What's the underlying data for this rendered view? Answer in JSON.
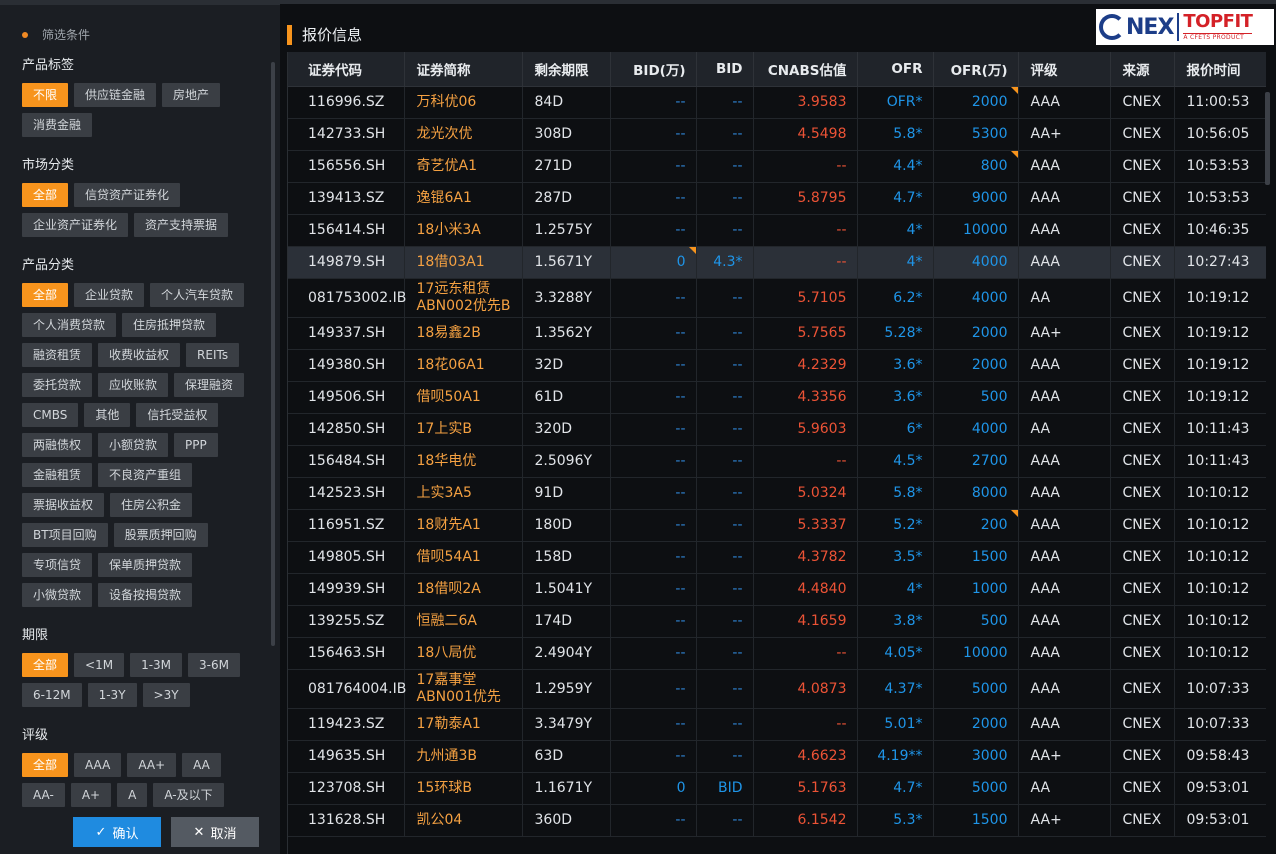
{
  "filters": {
    "header": "筛选条件",
    "sections": [
      {
        "title": "产品标签",
        "tags": [
          "不限",
          "供应链金融",
          "房地产",
          "消费金融"
        ],
        "active": 0
      },
      {
        "title": "市场分类",
        "tags": [
          "全部",
          "信贷资产证券化",
          "企业资产证券化",
          "资产支持票据"
        ],
        "active": 0
      },
      {
        "title": "产品分类",
        "tags": [
          "全部",
          "企业贷款",
          "个人汽车贷款",
          "个人消费贷款",
          "住房抵押贷款",
          "融资租赁",
          "收费收益权",
          "REITs",
          "委托贷款",
          "应收账款",
          "保理融资",
          "CMBS",
          "其他",
          "信托受益权",
          "两融债权",
          "小额贷款",
          "PPP",
          "金融租赁",
          "不良资产重组",
          "票据收益权",
          "住房公积金",
          "BT项目回购",
          "股票质押回购",
          "专项信贷",
          "保单质押贷款",
          "小微贷款",
          "设备按揭贷款"
        ],
        "active": 0
      },
      {
        "title": "期限",
        "tags": [
          "全部",
          "<1M",
          "1-3M",
          "3-6M",
          "6-12M",
          "1-3Y",
          ">3Y"
        ],
        "active": 0
      },
      {
        "title": "评级",
        "tags": [
          "全部",
          "AAA",
          "AA+",
          "AA",
          "AA-",
          "A+",
          "A",
          "A-及以下"
        ],
        "active": 0
      }
    ],
    "confirm_label": "确认",
    "cancel_label": "取消"
  },
  "panel": {
    "title": "报价信息",
    "logo": {
      "left": "NEX",
      "right": "TOPFIT",
      "sub": "A CFETS PRODUCT"
    }
  },
  "table": {
    "columns": [
      "证券代码",
      "证券简称",
      "剩余期限",
      "BID(万)",
      "BID",
      "CNABS估值",
      "OFR",
      "OFR(万)",
      "评级",
      "来源",
      "报价时间"
    ],
    "rows": [
      {
        "code": "116996.SZ",
        "name": [
          "万科优06"
        ],
        "term": "84D",
        "bidv": "--",
        "bid": "--",
        "val": "3.9583",
        "ofr": "OFR*",
        "ofrv": "2000",
        "rating": "AAA",
        "src": "CNEX",
        "time": "11:00:53",
        "ofrv_mark": true
      },
      {
        "code": "142733.SH",
        "name": [
          "龙光次优"
        ],
        "term": "308D",
        "bidv": "--",
        "bid": "--",
        "val": "4.5498",
        "ofr": "5.8*",
        "ofrv": "5300",
        "rating": "AA+",
        "src": "CNEX",
        "time": "10:56:05"
      },
      {
        "code": "156556.SH",
        "name": [
          "奇艺优A1"
        ],
        "term": "271D",
        "bidv": "--",
        "bid": "--",
        "val": "--",
        "ofr": "4.4*",
        "ofrv": "800",
        "rating": "AAA",
        "src": "CNEX",
        "time": "10:53:53",
        "ofrv_mark": true
      },
      {
        "code": "139413.SZ",
        "name": [
          "逸锟6A1"
        ],
        "term": "287D",
        "bidv": "--",
        "bid": "--",
        "val": "5.8795",
        "ofr": "4.7*",
        "ofrv": "9000",
        "rating": "AAA",
        "src": "CNEX",
        "time": "10:53:53"
      },
      {
        "code": "156414.SH",
        "name": [
          "18小米3A"
        ],
        "term": "1.2575Y",
        "bidv": "--",
        "bid": "--",
        "val": "--",
        "ofr": "4*",
        "ofrv": "10000",
        "rating": "AAA",
        "src": "CNEX",
        "time": "10:46:35"
      },
      {
        "code": "149879.SH",
        "name": [
          "18借03A1"
        ],
        "term": "1.5671Y",
        "bidv": "0",
        "bid": "4.3*",
        "val": "--",
        "ofr": "4*",
        "ofrv": "4000",
        "rating": "AAA",
        "src": "CNEX",
        "time": "10:27:43",
        "selected": true,
        "bidv_mark": true
      },
      {
        "code": "081753002.IB",
        "name": [
          "17远东租赁",
          "ABN002优先B"
        ],
        "term": "3.3288Y",
        "bidv": "--",
        "bid": "--",
        "val": "5.7105",
        "ofr": "6.2*",
        "ofrv": "4000",
        "rating": "AA",
        "src": "CNEX",
        "time": "10:19:12"
      },
      {
        "code": "149337.SH",
        "name": [
          "18易鑫2B"
        ],
        "term": "1.3562Y",
        "bidv": "--",
        "bid": "--",
        "val": "5.7565",
        "ofr": "5.28*",
        "ofrv": "2000",
        "rating": "AA+",
        "src": "CNEX",
        "time": "10:19:12"
      },
      {
        "code": "149380.SH",
        "name": [
          "18花06A1"
        ],
        "term": "32D",
        "bidv": "--",
        "bid": "--",
        "val": "4.2329",
        "ofr": "3.6*",
        "ofrv": "2000",
        "rating": "AAA",
        "src": "CNEX",
        "time": "10:19:12"
      },
      {
        "code": "149506.SH",
        "name": [
          "借呗50A1"
        ],
        "term": "61D",
        "bidv": "--",
        "bid": "--",
        "val": "4.3356",
        "ofr": "3.6*",
        "ofrv": "500",
        "rating": "AAA",
        "src": "CNEX",
        "time": "10:19:12"
      },
      {
        "code": "142850.SH",
        "name": [
          "17上实B"
        ],
        "term": "320D",
        "bidv": "--",
        "bid": "--",
        "val": "5.9603",
        "ofr": "6*",
        "ofrv": "4000",
        "rating": "AA",
        "src": "CNEX",
        "time": "10:11:43"
      },
      {
        "code": "156484.SH",
        "name": [
          "18华电优"
        ],
        "term": "2.5096Y",
        "bidv": "--",
        "bid": "--",
        "val": "--",
        "ofr": "4.5*",
        "ofrv": "2700",
        "rating": "AAA",
        "src": "CNEX",
        "time": "10:11:43"
      },
      {
        "code": "142523.SH",
        "name": [
          "上实3A5"
        ],
        "term": "91D",
        "bidv": "--",
        "bid": "--",
        "val": "5.0324",
        "ofr": "5.8*",
        "ofrv": "8000",
        "rating": "AAA",
        "src": "CNEX",
        "time": "10:10:12"
      },
      {
        "code": "116951.SZ",
        "name": [
          "18财先A1"
        ],
        "term": "180D",
        "bidv": "--",
        "bid": "--",
        "val": "5.3337",
        "ofr": "5.2*",
        "ofrv": "200",
        "rating": "AAA",
        "src": "CNEX",
        "time": "10:10:12",
        "ofrv_mark": true
      },
      {
        "code": "149805.SH",
        "name": [
          "借呗54A1"
        ],
        "term": "158D",
        "bidv": "--",
        "bid": "--",
        "val": "4.3782",
        "ofr": "3.5*",
        "ofrv": "1500",
        "rating": "AAA",
        "src": "CNEX",
        "time": "10:10:12"
      },
      {
        "code": "149939.SH",
        "name": [
          "18借呗2A"
        ],
        "term": "1.5041Y",
        "bidv": "--",
        "bid": "--",
        "val": "4.4840",
        "ofr": "4*",
        "ofrv": "1000",
        "rating": "AAA",
        "src": "CNEX",
        "time": "10:10:12"
      },
      {
        "code": "139255.SZ",
        "name": [
          "恒融二6A"
        ],
        "term": "174D",
        "bidv": "--",
        "bid": "--",
        "val": "4.1659",
        "ofr": "3.8*",
        "ofrv": "500",
        "rating": "AAA",
        "src": "CNEX",
        "time": "10:10:12"
      },
      {
        "code": "156463.SH",
        "name": [
          "18八局优"
        ],
        "term": "2.4904Y",
        "bidv": "--",
        "bid": "--",
        "val": "--",
        "ofr": "4.05*",
        "ofrv": "10000",
        "rating": "AAA",
        "src": "CNEX",
        "time": "10:10:12"
      },
      {
        "code": "081764004.IB",
        "name": [
          "17嘉事堂",
          "ABN001优先"
        ],
        "term": "1.2959Y",
        "bidv": "--",
        "bid": "--",
        "val": "4.0873",
        "ofr": "4.37*",
        "ofrv": "5000",
        "rating": "AAA",
        "src": "CNEX",
        "time": "10:07:33"
      },
      {
        "code": "119423.SZ",
        "name": [
          "17勒泰A1"
        ],
        "term": "3.3479Y",
        "bidv": "--",
        "bid": "--",
        "val": "--",
        "ofr": "5.01*",
        "ofrv": "2000",
        "rating": "AAA",
        "src": "CNEX",
        "time": "10:07:33"
      },
      {
        "code": "149635.SH",
        "name": [
          "九州通3B"
        ],
        "term": "63D",
        "bidv": "--",
        "bid": "--",
        "val": "4.6623",
        "ofr": "4.19**",
        "ofrv": "3000",
        "rating": "AA+",
        "src": "CNEX",
        "time": "09:58:43"
      },
      {
        "code": "123708.SH",
        "name": [
          "15环球B"
        ],
        "term": "1.1671Y",
        "bidv": "0",
        "bid": "BID",
        "val": "5.1763",
        "ofr": "4.7*",
        "ofrv": "5000",
        "rating": "AA",
        "src": "CNEX",
        "time": "09:53:01"
      },
      {
        "code": "131628.SH",
        "name": [
          "凯公04"
        ],
        "term": "360D",
        "bidv": "--",
        "bid": "--",
        "val": "6.1542",
        "ofr": "5.3*",
        "ofrv": "1500",
        "rating": "AA+",
        "src": "CNEX",
        "time": "09:53:01"
      }
    ]
  }
}
